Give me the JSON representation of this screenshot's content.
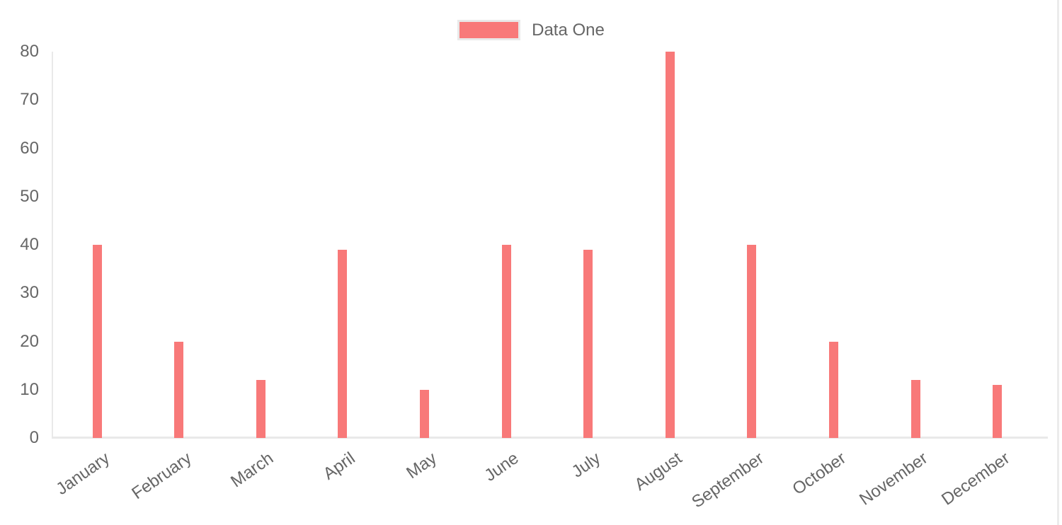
{
  "legend": {
    "label": "Data One",
    "swatch_color": "#f87979",
    "swatch_border_color": "#e9e9e9"
  },
  "chart_data": {
    "type": "bar",
    "title": "",
    "categories": [
      "January",
      "February",
      "March",
      "April",
      "May",
      "June",
      "July",
      "August",
      "September",
      "October",
      "November",
      "December"
    ],
    "series": [
      {
        "name": "Data One",
        "color": "#f87979",
        "values": [
          40,
          20,
          12,
          39,
          10,
          40,
          39,
          80,
          40,
          20,
          12,
          11
        ]
      }
    ],
    "xlabel": "",
    "ylabel": "",
    "ylim": [
      0,
      80
    ],
    "y_ticks": [
      0,
      10,
      20,
      30,
      40,
      50,
      60,
      70,
      80
    ],
    "grid": false,
    "legend_position": "top",
    "axis_line_color": "#e9e9e9",
    "tick_label_color": "#666666",
    "x_tick_rotation_deg": -35
  },
  "page": {
    "right_edge_line_color": "#ececec"
  }
}
